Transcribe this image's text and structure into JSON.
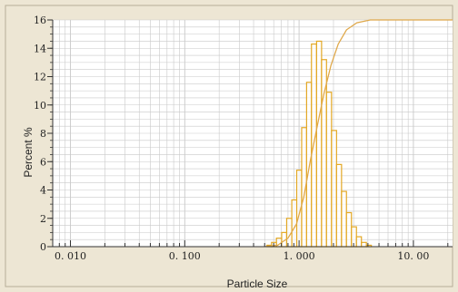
{
  "chart_data": {
    "type": "bar",
    "xlabel": "Particle Size",
    "ylabel": "Percent %",
    "x_scale": "log",
    "xlim": [
      0.007,
      22
    ],
    "ylim": [
      0,
      16
    ],
    "y_ticks": [
      "0",
      "2",
      "4",
      "6",
      "8",
      "10",
      "12",
      "14",
      "16"
    ],
    "x_ticks": [
      {
        "value": 0.01,
        "label": "0. 010"
      },
      {
        "value": 0.1,
        "label": "0. 100"
      },
      {
        "value": 1,
        "label": "1. 000"
      },
      {
        "value": 10,
        "label": "10. 00"
      }
    ],
    "grid": true,
    "series": [
      {
        "kind": "histogram",
        "bins": [
          {
            "x": 0.55,
            "y": 0.1
          },
          {
            "x": 0.6,
            "y": 0.3
          },
          {
            "x": 0.67,
            "y": 0.6
          },
          {
            "x": 0.74,
            "y": 1.0
          },
          {
            "x": 0.82,
            "y": 2.0
          },
          {
            "x": 0.91,
            "y": 3.3
          },
          {
            "x": 1.0,
            "y": 5.4
          },
          {
            "x": 1.11,
            "y": 8.4
          },
          {
            "x": 1.22,
            "y": 11.6
          },
          {
            "x": 1.35,
            "y": 14.3
          },
          {
            "x": 1.5,
            "y": 14.5
          },
          {
            "x": 1.65,
            "y": 13.2
          },
          {
            "x": 1.83,
            "y": 10.9
          },
          {
            "x": 2.02,
            "y": 8.2
          },
          {
            "x": 2.24,
            "y": 5.8
          },
          {
            "x": 2.47,
            "y": 3.9
          },
          {
            "x": 2.73,
            "y": 2.4
          },
          {
            "x": 3.02,
            "y": 1.4
          },
          {
            "x": 3.34,
            "y": 0.7
          },
          {
            "x": 3.69,
            "y": 0.3
          },
          {
            "x": 4.08,
            "y": 0.1
          }
        ]
      },
      {
        "kind": "cumulative-curve",
        "points": [
          {
            "x": 0.5,
            "y": 0.0
          },
          {
            "x": 0.65,
            "y": 0.1
          },
          {
            "x": 0.8,
            "y": 0.6
          },
          {
            "x": 0.95,
            "y": 1.6
          },
          {
            "x": 1.1,
            "y": 3.5
          },
          {
            "x": 1.25,
            "y": 6.0
          },
          {
            "x": 1.45,
            "y": 8.6
          },
          {
            "x": 1.65,
            "y": 10.8
          },
          {
            "x": 1.9,
            "y": 12.8
          },
          {
            "x": 2.2,
            "y": 14.3
          },
          {
            "x": 2.6,
            "y": 15.3
          },
          {
            "x": 3.2,
            "y": 15.8
          },
          {
            "x": 4.2,
            "y": 16.0
          },
          {
            "x": 22,
            "y": 16.0
          }
        ]
      }
    ],
    "colors": {
      "background": "#ede6d4",
      "plot_background": "#ffffff",
      "grid": "#c9c9c9",
      "bar_stroke": "#e3a825",
      "curve": "#dfa84a",
      "axis": "#333333"
    }
  }
}
